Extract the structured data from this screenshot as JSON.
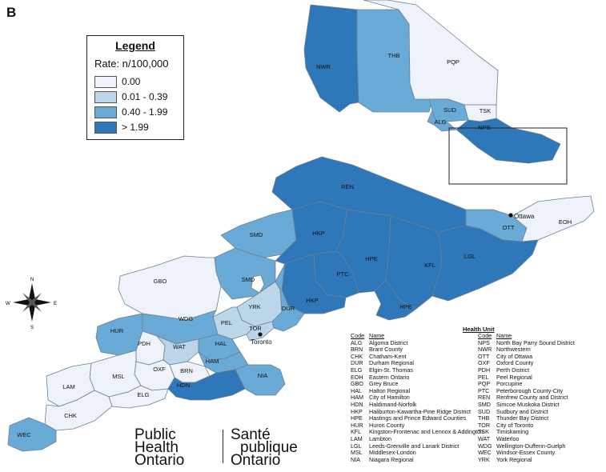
{
  "panel_label": "B",
  "legend": {
    "title": "Legend",
    "subtitle": "Rate: n/100,000",
    "classes": [
      {
        "label": "0.00",
        "color": "#eef2fa"
      },
      {
        "label": "0.01 - 0.39",
        "color": "#bcd6e9"
      },
      {
        "label": "0.40 - 1.99",
        "color": "#6aaad6"
      },
      {
        "label": "> 1.99",
        "color": "#2e77b8"
      }
    ]
  },
  "regions": [
    {
      "code": "NWR",
      "class": 3
    },
    {
      "code": "THB",
      "class": 2
    },
    {
      "code": "PQP",
      "class": 0
    },
    {
      "code": "SUD",
      "class": 2
    },
    {
      "code": "TSK",
      "class": 0
    },
    {
      "code": "ALG",
      "class": 2
    },
    {
      "code": "NPS",
      "class": 3
    },
    {
      "code": "REN",
      "class": 3
    },
    {
      "code": "OTT",
      "class": 2
    },
    {
      "code": "EOH",
      "class": 0
    },
    {
      "code": "SMD",
      "class": 2
    },
    {
      "code": "HKP",
      "class": 3
    },
    {
      "code": "HPE",
      "class": 3
    },
    {
      "code": "KFL",
      "class": 3
    },
    {
      "code": "LGL",
      "class": 3
    },
    {
      "code": "PTC",
      "class": 3
    },
    {
      "code": "GBO",
      "class": 0
    },
    {
      "code": "YRK",
      "class": 1
    },
    {
      "code": "DUR",
      "class": 2
    },
    {
      "code": "PEL",
      "class": 1
    },
    {
      "code": "TOR",
      "class": 1
    },
    {
      "code": "HUR",
      "class": 2
    },
    {
      "code": "WDG",
      "class": 2
    },
    {
      "code": "PDH",
      "class": 0
    },
    {
      "code": "WAT",
      "class": 1
    },
    {
      "code": "HAL",
      "class": 2
    },
    {
      "code": "HAM",
      "class": 2
    },
    {
      "code": "NIA",
      "class": 2
    },
    {
      "code": "BRN",
      "class": 0
    },
    {
      "code": "HDN",
      "class": 3
    },
    {
      "code": "OXF",
      "class": 0
    },
    {
      "code": "MSL",
      "class": 0
    },
    {
      "code": "ELG",
      "class": 0
    },
    {
      "code": "LAM",
      "class": 0
    },
    {
      "code": "CHK",
      "class": 0
    },
    {
      "code": "WEC",
      "class": 2
    }
  ],
  "cities": [
    "Ottawa",
    "Toronto"
  ],
  "compass": {
    "n": "N",
    "s": "S",
    "e": "E",
    "w": "W"
  },
  "health_units": {
    "title": "Health Unit",
    "code_header": "Code",
    "name_header": "Name",
    "col1": [
      {
        "code": "ALG",
        "name": "Algoma District"
      },
      {
        "code": "BRN",
        "name": "Brant County"
      },
      {
        "code": "CHK",
        "name": "Chatham-Kent"
      },
      {
        "code": "DUR",
        "name": "Durham Regional"
      },
      {
        "code": "ELG",
        "name": "Elgin-St. Thomas"
      },
      {
        "code": "EOH",
        "name": "Eastern Ontario"
      },
      {
        "code": "GBO",
        "name": "Grey Bruce"
      },
      {
        "code": "HAL",
        "name": "Halton Regional"
      },
      {
        "code": "HAM",
        "name": "City of Hamilton"
      },
      {
        "code": "HDN",
        "name": "Haldimand-Norfolk"
      },
      {
        "code": "HKP",
        "name": "Haliburton-Kawartha-Pine Ridge District"
      },
      {
        "code": "HPE",
        "name": "Hastings and Prince Edward Counties"
      },
      {
        "code": "HUR",
        "name": "Huron County"
      },
      {
        "code": "KFL",
        "name": "Kingston-Frontenac and Lennox & Addington"
      },
      {
        "code": "LAM",
        "name": "Lambton"
      },
      {
        "code": "LGL",
        "name": "Leeds-Grenville and Lanark District"
      },
      {
        "code": "MSL",
        "name": "Middlesex-London"
      },
      {
        "code": "NIA",
        "name": "Niagara Regional"
      }
    ],
    "col2": [
      {
        "code": "NPS",
        "name": "North Bay Parry Sound District"
      },
      {
        "code": "NWR",
        "name": "Northwestern"
      },
      {
        "code": "OTT",
        "name": "City of Ottawa"
      },
      {
        "code": "OXF",
        "name": "Oxford County"
      },
      {
        "code": "PDH",
        "name": "Perth District"
      },
      {
        "code": "PEL",
        "name": "Peel Regional"
      },
      {
        "code": "PQP",
        "name": "Porcupine"
      },
      {
        "code": "PTC",
        "name": "Peterborough County-City"
      },
      {
        "code": "REN",
        "name": "Renfrew County and District"
      },
      {
        "code": "SMD",
        "name": "Simcoe Muskoka District"
      },
      {
        "code": "SUD",
        "name": "Sudbury and District"
      },
      {
        "code": "THB",
        "name": "Thunder Bay District"
      },
      {
        "code": "TOR",
        "name": "City of Toronto"
      },
      {
        "code": "TSK",
        "name": "Timiskaming"
      },
      {
        "code": "WAT",
        "name": "Waterloo"
      },
      {
        "code": "WDG",
        "name": "Wellington-Dufferin-Guelph"
      },
      {
        "code": "WEC",
        "name": "Windsor-Essex County"
      },
      {
        "code": "YRK",
        "name": "York Regional"
      }
    ]
  },
  "logo": {
    "en_line1": "Public",
    "en_line2": "Health",
    "en_line3": "Ontario",
    "fr_line1": "Santé",
    "fr_line2": "publique",
    "fr_line3": "Ontario"
  }
}
